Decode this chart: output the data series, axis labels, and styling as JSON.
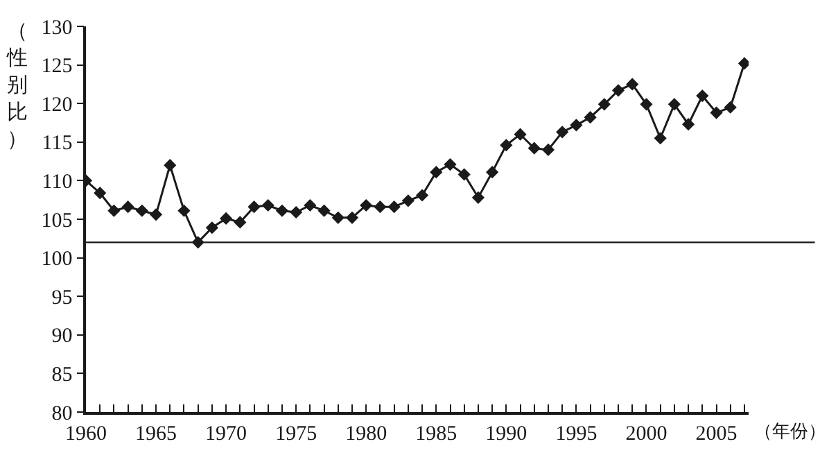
{
  "chart_data": {
    "type": "line",
    "xlabel": "（年份）",
    "ylabel": "（性别比）",
    "x": [
      1960,
      1961,
      1962,
      1963,
      1964,
      1965,
      1966,
      1967,
      1968,
      1969,
      1970,
      1971,
      1972,
      1973,
      1974,
      1975,
      1976,
      1977,
      1978,
      1979,
      1980,
      1981,
      1982,
      1983,
      1984,
      1985,
      1986,
      1987,
      1988,
      1989,
      1990,
      1991,
      1992,
      1993,
      1994,
      1995,
      1996,
      1997,
      1998,
      1999,
      2000,
      2001,
      2002,
      2003,
      2004,
      2005,
      2006,
      2007
    ],
    "series": [
      {
        "color": "#1a1a1a",
        "values": [
          110.0,
          108.4,
          106.1,
          106.6,
          106.1,
          105.6,
          112.0,
          106.1,
          102.0,
          103.9,
          105.1,
          104.6,
          106.6,
          106.8,
          106.1,
          105.9,
          106.8,
          106.1,
          105.2,
          105.2,
          106.8,
          106.6,
          106.6,
          107.4,
          108.1,
          111.1,
          112.1,
          110.8,
          107.8,
          111.1,
          114.6,
          116.0,
          114.2,
          114.0,
          116.3,
          117.2,
          118.2,
          119.9,
          121.7,
          122.5,
          119.9,
          115.5,
          119.9,
          117.3,
          121.0,
          118.8,
          119.5,
          125.2
        ]
      }
    ],
    "xlim": [
      1960,
      2007.3
    ],
    "xticks": [
      1960,
      {
        "value": 1961,
        "label": null
      },
      {
        "value": 1962,
        "label": null
      },
      {
        "value": 1963,
        "label": null
      },
      {
        "value": 1964,
        "label": null
      },
      1965,
      {
        "value": 1966,
        "label": null
      },
      {
        "value": 1967,
        "label": null
      },
      {
        "value": 1968,
        "label": null
      },
      {
        "value": 1969,
        "label": null
      },
      1970,
      {
        "value": 1971,
        "label": null
      },
      {
        "value": 1972,
        "label": null
      },
      {
        "value": 1973,
        "label": null
      },
      {
        "value": 1974,
        "label": null
      },
      1975,
      {
        "value": 1976,
        "label": null
      },
      {
        "value": 1977,
        "label": null
      },
      {
        "value": 1978,
        "label": null
      },
      {
        "value": 1979,
        "label": null
      },
      1980,
      {
        "value": 1981,
        "label": null
      },
      {
        "value": 1982,
        "label": null
      },
      {
        "value": 1983,
        "label": null
      },
      {
        "value": 1984,
        "label": null
      },
      1985,
      {
        "value": 1986,
        "label": null
      },
      {
        "value": 1987,
        "label": null
      },
      {
        "value": 1988,
        "label": null
      },
      {
        "value": 1989,
        "label": null
      },
      1990,
      {
        "value": 1991,
        "label": null
      },
      {
        "value": 1992,
        "label": null
      },
      {
        "value": 1993,
        "label": null
      },
      {
        "value": 1994,
        "label": null
      },
      1995,
      {
        "value": 1996,
        "label": null
      },
      {
        "value": 1997,
        "label": null
      },
      {
        "value": 1998,
        "label": null
      },
      {
        "value": 1999,
        "label": null
      },
      2000,
      {
        "value": 2001,
        "label": null
      },
      {
        "value": 2002,
        "label": null
      },
      {
        "value": 2003,
        "label": null
      },
      {
        "value": 2004,
        "label": null
      },
      2005,
      {
        "value": 2006,
        "label": null
      },
      {
        "value": 2007,
        "label": null
      }
    ],
    "ylim": [
      80,
      130
    ],
    "yticks": [
      80,
      85,
      90,
      95,
      100,
      105,
      110,
      115,
      120,
      125,
      130
    ],
    "ref_lines": [
      {
        "axis": "y",
        "value": 102,
        "color": "#1a1a1a"
      }
    ],
    "marker": "diamond",
    "line_style": "solid"
  }
}
